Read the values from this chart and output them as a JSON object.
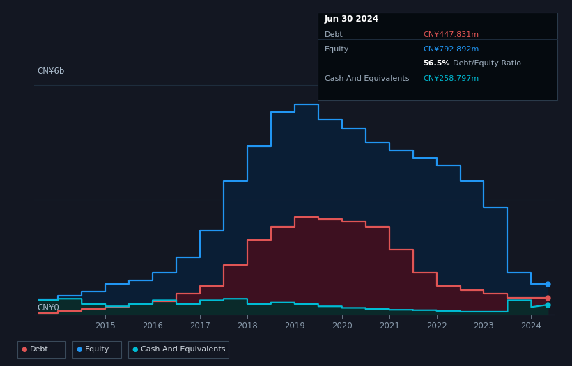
{
  "bg_color": "#131722",
  "plot_bg_color": "#131722",
  "grid_color": "#1e2d3d",
  "debt_color": "#e05555",
  "equity_color": "#2196f3",
  "cash_color": "#00bcd4",
  "debt_fill": "#3d1020",
  "equity_fill": "#0a1e35",
  "cash_fill": "#0a2a2a",
  "tooltip_title": "Jun 30 2024",
  "tooltip_debt_label": "Debt",
  "tooltip_debt_value": "CN¥447.831m",
  "tooltip_equity_label": "Equity",
  "tooltip_equity_value": "CN¥792.892m",
  "tooltip_ratio": "56.5% Debt/Equity Ratio",
  "tooltip_cash_label": "Cash And Equivalents",
  "tooltip_cash_value": "CN¥258.797m",
  "legend_debt": "Debt",
  "legend_equity": "Equity",
  "legend_cash": "Cash And Equivalents",
  "years": [
    2013.6,
    2014.0,
    2014.0,
    2014.5,
    2014.5,
    2015.0,
    2015.0,
    2015.5,
    2015.5,
    2016.0,
    2016.0,
    2016.5,
    2016.5,
    2017.0,
    2017.0,
    2017.5,
    2017.5,
    2018.0,
    2018.0,
    2018.5,
    2018.5,
    2019.0,
    2019.0,
    2019.5,
    2019.5,
    2020.0,
    2020.0,
    2020.5,
    2020.5,
    2021.0,
    2021.0,
    2021.5,
    2021.5,
    2022.0,
    2022.0,
    2022.5,
    2022.5,
    2023.0,
    2023.0,
    2023.5,
    2023.5,
    2024.0,
    2024.0,
    2024.35
  ],
  "equity": [
    0.4,
    0.4,
    0.5,
    0.5,
    0.6,
    0.6,
    0.8,
    0.8,
    0.9,
    0.9,
    1.1,
    1.1,
    1.5,
    1.5,
    2.2,
    2.2,
    3.5,
    3.5,
    4.4,
    4.4,
    5.3,
    5.3,
    5.5,
    5.5,
    5.1,
    5.1,
    4.85,
    4.85,
    4.5,
    4.5,
    4.3,
    4.3,
    4.1,
    4.1,
    3.9,
    3.9,
    3.5,
    3.5,
    2.8,
    2.8,
    1.1,
    1.1,
    0.8,
    0.8
  ],
  "debt": [
    0.05,
    0.05,
    0.1,
    0.1,
    0.15,
    0.15,
    0.2,
    0.2,
    0.28,
    0.28,
    0.35,
    0.35,
    0.55,
    0.55,
    0.75,
    0.75,
    1.3,
    1.3,
    1.95,
    1.95,
    2.3,
    2.3,
    2.55,
    2.55,
    2.5,
    2.5,
    2.45,
    2.45,
    2.3,
    2.3,
    1.7,
    1.7,
    1.1,
    1.1,
    0.75,
    0.75,
    0.65,
    0.65,
    0.55,
    0.55,
    0.45,
    0.45,
    0.45,
    0.45
  ],
  "cash": [
    0.38,
    0.38,
    0.42,
    0.42,
    0.28,
    0.28,
    0.22,
    0.22,
    0.28,
    0.28,
    0.38,
    0.38,
    0.28,
    0.28,
    0.38,
    0.38,
    0.42,
    0.42,
    0.28,
    0.28,
    0.32,
    0.32,
    0.28,
    0.28,
    0.22,
    0.22,
    0.18,
    0.18,
    0.15,
    0.15,
    0.13,
    0.13,
    0.12,
    0.12,
    0.1,
    0.1,
    0.08,
    0.08,
    0.08,
    0.08,
    0.38,
    0.38,
    0.2,
    0.26
  ],
  "xlim": [
    2013.5,
    2024.5
  ],
  "ylim": [
    0,
    6.5
  ],
  "xticks": [
    2015,
    2016,
    2017,
    2018,
    2019,
    2020,
    2021,
    2022,
    2023,
    2024
  ],
  "ylabel_top": "CN¥6b",
  "ylabel_bot": "CN¥0"
}
